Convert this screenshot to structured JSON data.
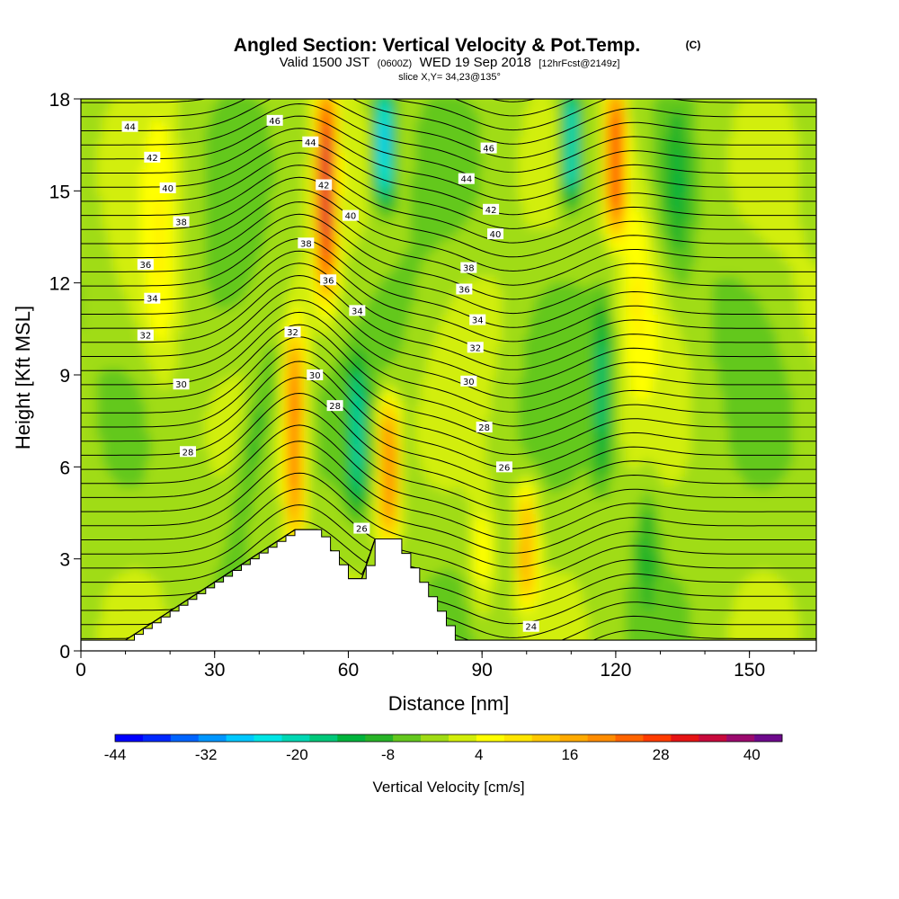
{
  "chart_data": {
    "type": "heatmap",
    "title": "Angled Section: Vertical Velocity & Pot.Temp.",
    "title_suffix": "(C)",
    "subtitle_parts": [
      "Valid 1500 JST",
      "(0600Z)",
      "WED 19 Sep 2018",
      "[12hrFcst@2149z]"
    ],
    "slice": "slice X,Y= 34,23@135°",
    "xlabel": "Distance [nm]",
    "ylabel": "Height [Kft MSL]",
    "xlim": [
      0,
      165
    ],
    "ylim": [
      0,
      18
    ],
    "x_ticks": [
      0,
      30,
      60,
      90,
      120,
      150
    ],
    "y_ticks": [
      0,
      3,
      6,
      9,
      12,
      15,
      18
    ],
    "colorbar": {
      "label": "Vertical Velocity [cm/s]",
      "min": -44,
      "max": 44,
      "step": 4,
      "tick_values": [
        -44,
        -32,
        -20,
        -8,
        4,
        16,
        28,
        40
      ],
      "colors": [
        "#0000ff",
        "#0028ff",
        "#0064ff",
        "#0096ff",
        "#00c8ff",
        "#00e6e6",
        "#00d8b4",
        "#00c87a",
        "#00b43c",
        "#28b428",
        "#64c81e",
        "#a0dc14",
        "#d2ee0a",
        "#ffff00",
        "#ffe600",
        "#ffc800",
        "#ffaa00",
        "#ff8c00",
        "#ff6400",
        "#ff3c00",
        "#e61414",
        "#c80a3c",
        "#9b0a6e",
        "#6e0a8c"
      ]
    },
    "updrafts": [
      {
        "x": 48,
        "z_min": 4,
        "z_max": 10,
        "peak": 28
      },
      {
        "x": 55,
        "z_min": 12,
        "z_max": 18,
        "peak": 36
      },
      {
        "x": 69,
        "z_min": 4,
        "z_max": 7.8,
        "peak": 28
      },
      {
        "x": 100,
        "z_min": 2,
        "z_max": 5,
        "peak": 20
      },
      {
        "x": 120,
        "z_min": 14,
        "z_max": 18,
        "peak": 34
      }
    ],
    "downdrafts": [
      {
        "x": 62,
        "z_min": 5,
        "z_max": 9,
        "peak": -16
      },
      {
        "x": 68,
        "z_min": 15,
        "z_max": 18,
        "peak": -28
      },
      {
        "x": 110,
        "z_min": 15,
        "z_max": 18,
        "peak": -26
      },
      {
        "x": 117,
        "z_min": 6,
        "z_max": 11,
        "peak": -14
      }
    ],
    "theta_contours": {
      "label_values": [
        24,
        26,
        28,
        30,
        32,
        34,
        36,
        38,
        40,
        42,
        44,
        46
      ],
      "labels": [
        {
          "text": "44",
          "x": 11,
          "z": 17.1
        },
        {
          "text": "42",
          "x": 16,
          "z": 16.1
        },
        {
          "text": "40",
          "x": 19.5,
          "z": 15.1
        },
        {
          "text": "38",
          "x": 22.5,
          "z": 14.0
        },
        {
          "text": "36",
          "x": 14.5,
          "z": 12.6
        },
        {
          "text": "34",
          "x": 16,
          "z": 11.5
        },
        {
          "text": "32",
          "x": 14.5,
          "z": 10.3
        },
        {
          "text": "30",
          "x": 22.5,
          "z": 8.7
        },
        {
          "text": "28",
          "x": 24,
          "z": 6.5
        },
        {
          "text": "46",
          "x": 43.5,
          "z": 17.3
        },
        {
          "text": "44",
          "x": 51.5,
          "z": 16.6
        },
        {
          "text": "42",
          "x": 54.5,
          "z": 15.2
        },
        {
          "text": "40",
          "x": 60.5,
          "z": 14.2
        },
        {
          "text": "38",
          "x": 50.5,
          "z": 13.3
        },
        {
          "text": "36",
          "x": 55.5,
          "z": 12.1
        },
        {
          "text": "34",
          "x": 62,
          "z": 11.1
        },
        {
          "text": "32",
          "x": 47.5,
          "z": 10.4
        },
        {
          "text": "30",
          "x": 52.5,
          "z": 9.0
        },
        {
          "text": "28",
          "x": 57,
          "z": 8.0
        },
        {
          "text": "26",
          "x": 63,
          "z": 4.0
        },
        {
          "text": "46",
          "x": 91.5,
          "z": 16.4
        },
        {
          "text": "44",
          "x": 86.5,
          "z": 15.4
        },
        {
          "text": "42",
          "x": 92,
          "z": 14.4
        },
        {
          "text": "40",
          "x": 93,
          "z": 13.6
        },
        {
          "text": "38",
          "x": 87,
          "z": 12.5
        },
        {
          "text": "36",
          "x": 86,
          "z": 11.8
        },
        {
          "text": "34",
          "x": 89,
          "z": 10.8
        },
        {
          "text": "32",
          "x": 88.5,
          "z": 9.9
        },
        {
          "text": "30",
          "x": 87,
          "z": 8.8
        },
        {
          "text": "28",
          "x": 90.5,
          "z": 7.3
        },
        {
          "text": "26",
          "x": 95,
          "z": 6.0
        },
        {
          "text": "24",
          "x": 101,
          "z": 0.8
        }
      ]
    }
  }
}
